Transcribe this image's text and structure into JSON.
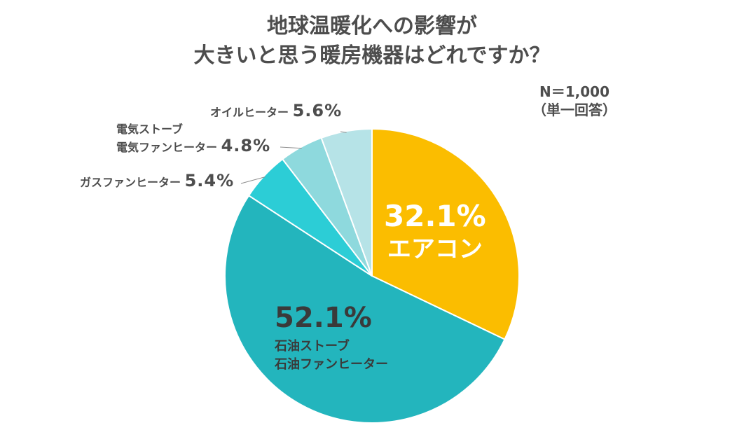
{
  "title_line1": "地球温暖化への影響が",
  "title_line2": "大きいと思う暖房機器はどれですか？",
  "sample_size": "N＝1,000",
  "answer_type": "（単一回答）",
  "colors": {
    "aircon": "#fbbd00",
    "kerosene": "#23b5bd",
    "gas_fan": "#2ccdd6",
    "electric": "#8ed9dd",
    "oil_heater": "#b6e3e7"
  },
  "chart_data": {
    "type": "pie",
    "title": "地球温暖化への影響が 大きいと思う暖房機器はどれですか？",
    "categories": [
      "エアコン",
      "石油ストーブ 石油ファンヒーター",
      "ガスファンヒーター",
      "電気ストーブ 電気ファンヒーター",
      "オイルヒーター"
    ],
    "values": [
      32.1,
      52.1,
      5.4,
      4.8,
      5.6
    ],
    "start": "12 o'clock",
    "direction": "clockwise"
  },
  "labels": {
    "aircon": {
      "pct": "32.1%",
      "name": "エアコン"
    },
    "kerosene": {
      "pct": "52.1%",
      "name_line1": "石油ストーブ",
      "name_line2": "石油ファンヒーター"
    },
    "gas_fan": {
      "name": "ガスファンヒーター",
      "pct": "5.4%"
    },
    "electric": {
      "name_line1": "電気ストーブ",
      "name_line2": "電気ファンヒーター",
      "pct": "4.8%"
    },
    "oil_heater": {
      "name": "オイルヒーター",
      "pct": "5.6%"
    }
  }
}
